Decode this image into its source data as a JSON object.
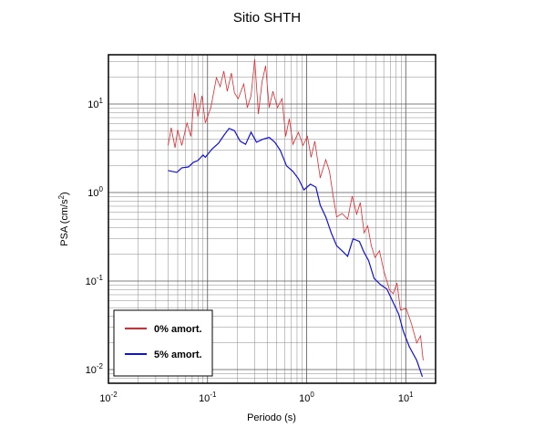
{
  "chart_data": {
    "type": "line",
    "title": "Sitio SHTH",
    "xlabel": "Periodo (s)",
    "ylabel": {
      "text": "PSA (cm/s",
      "sup": "2",
      "end": ")"
    },
    "xscale": "log",
    "yscale": "log",
    "xlim": [
      0.01,
      20
    ],
    "ylim": [
      0.007,
      36
    ],
    "xticks": [
      {
        "value": 0.01,
        "label": "10",
        "exponent": "-2"
      },
      {
        "value": 0.1,
        "label": "10",
        "exponent": "-1"
      },
      {
        "value": 1,
        "label": "10",
        "exponent": "0"
      },
      {
        "value": 10,
        "label": "10",
        "exponent": "1"
      }
    ],
    "yticks": [
      {
        "value": 0.01,
        "label": "10",
        "exponent": "-2"
      },
      {
        "value": 0.1,
        "label": "10",
        "exponent": "-1"
      },
      {
        "value": 1,
        "label": "10",
        "exponent": "0"
      },
      {
        "value": 10,
        "label": "10",
        "exponent": "1"
      }
    ],
    "xminor": [
      0.02,
      0.03,
      0.04,
      0.05,
      0.06,
      0.07,
      0.08,
      0.09,
      0.2,
      0.3,
      0.4,
      0.5,
      0.6,
      0.7,
      0.8,
      0.9,
      2,
      3,
      4,
      5,
      6,
      7,
      8,
      9
    ],
    "yminor": [
      0.008,
      0.009,
      0.02,
      0.03,
      0.04,
      0.05,
      0.06,
      0.07,
      0.08,
      0.09,
      0.2,
      0.3,
      0.4,
      0.5,
      0.6,
      0.7,
      0.8,
      0.9,
      2,
      3,
      4,
      5,
      6,
      7,
      8,
      9,
      20,
      30
    ],
    "grid": true,
    "legend": "lower left",
    "series": [
      {
        "name": "0% amort.",
        "color": "#e8262a",
        "x": [
          0.04,
          0.043,
          0.047,
          0.05,
          0.055,
          0.062,
          0.068,
          0.074,
          0.08,
          0.088,
          0.095,
          0.108,
          0.123,
          0.134,
          0.146,
          0.158,
          0.174,
          0.187,
          0.204,
          0.232,
          0.252,
          0.275,
          0.299,
          0.326,
          0.354,
          0.386,
          0.419,
          0.457,
          0.508,
          0.564,
          0.614,
          0.668,
          0.728,
          0.826,
          0.919,
          1.02,
          1.11,
          1.21,
          1.37,
          1.56,
          1.7,
          1.85,
          2.01,
          2.28,
          2.59,
          2.88,
          3.2,
          3.48,
          3.8,
          4.13,
          4.5,
          4.89,
          5.43,
          6.05,
          6.87,
          7.49,
          8.15,
          8.86,
          10.1,
          11.4,
          12.9,
          14.1,
          15.0
        ],
        "values": [
          3.4,
          5.4,
          3.2,
          5.1,
          3.4,
          6.1,
          4.3,
          13.3,
          7.2,
          12.4,
          6.1,
          9.1,
          19.9,
          15.7,
          23.5,
          13.9,
          22.4,
          13.3,
          11.5,
          16.8,
          9.1,
          12.4,
          32,
          7.7,
          17.7,
          27,
          9.1,
          13.9,
          9.1,
          11.5,
          4.3,
          6.8,
          3.5,
          4.8,
          3.4,
          4.3,
          2.5,
          3.8,
          1.46,
          2.35,
          1.73,
          0.91,
          0.53,
          0.58,
          0.5,
          0.91,
          0.57,
          0.77,
          0.35,
          0.42,
          0.25,
          0.185,
          0.22,
          0.127,
          0.079,
          0.072,
          0.095,
          0.047,
          0.049,
          0.033,
          0.02,
          0.024,
          0.0127
        ]
      },
      {
        "name": "5% amort.",
        "color": "#1010e0",
        "x": [
          0.04,
          0.049,
          0.055,
          0.064,
          0.072,
          0.08,
          0.09,
          0.095,
          0.111,
          0.129,
          0.146,
          0.165,
          0.187,
          0.213,
          0.242,
          0.275,
          0.312,
          0.362,
          0.419,
          0.477,
          0.541,
          0.627,
          0.728,
          0.826,
          0.938,
          1.09,
          1.24,
          1.37,
          1.56,
          1.77,
          2.01,
          2.28,
          2.59,
          2.94,
          3.41,
          3.8,
          4.22,
          4.79,
          5.55,
          6.45,
          7.49,
          8.51,
          9.45,
          10.9,
          12.9,
          14.7
        ],
        "values": [
          1.77,
          1.69,
          1.9,
          1.94,
          2.19,
          2.3,
          2.65,
          2.5,
          3.1,
          3.6,
          4.4,
          5.3,
          5.0,
          3.8,
          3.5,
          4.8,
          3.7,
          4.0,
          4.2,
          3.7,
          3.0,
          2.0,
          1.73,
          1.43,
          1.07,
          1.24,
          1.15,
          0.72,
          0.53,
          0.35,
          0.25,
          0.22,
          0.19,
          0.3,
          0.28,
          0.21,
          0.17,
          0.107,
          0.091,
          0.081,
          0.057,
          0.042,
          0.027,
          0.018,
          0.0127,
          0.0083
        ]
      }
    ]
  }
}
